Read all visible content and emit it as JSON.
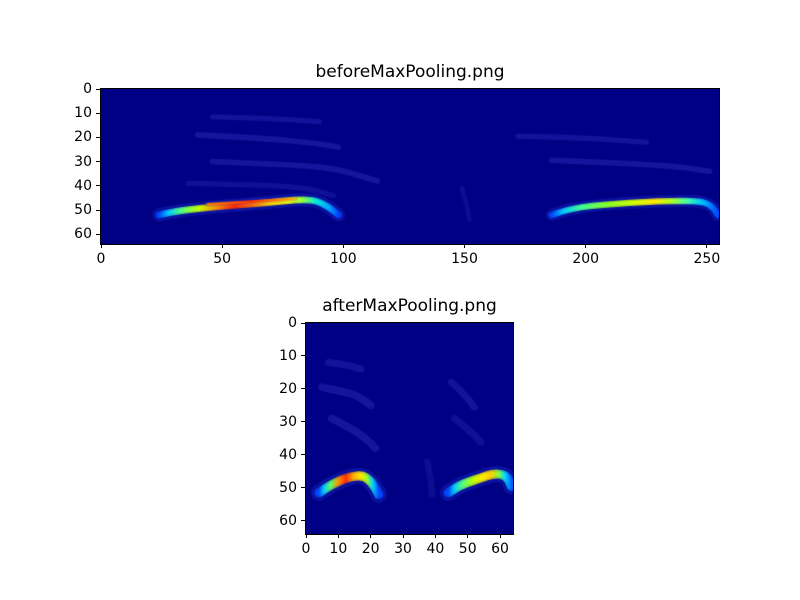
{
  "figure": {
    "background": "#ffffff"
  },
  "chart_data": [
    {
      "type": "heatmap",
      "title": "beforeMaxPooling.png",
      "colormap": "jet",
      "origin": "upper",
      "xlim": [
        0,
        255
      ],
      "ylim": [
        0,
        64
      ],
      "xticks": [
        0,
        50,
        100,
        150,
        200,
        250
      ],
      "yticks": [
        0,
        10,
        20,
        30,
        40,
        50,
        60
      ],
      "xlabel": "",
      "ylabel": "",
      "background_color": "#000084",
      "streaks": [
        {
          "name": "left-main-ridge",
          "points": [
            [
              24,
              52
            ],
            [
              29,
              50.8
            ],
            [
              36,
              49.8
            ],
            [
              46,
              48.8
            ],
            [
              58,
              47.8
            ],
            [
              70,
              46.8
            ],
            [
              80,
              45.8
            ],
            [
              87,
              45.8
            ],
            [
              91,
              47
            ],
            [
              95,
              49.5
            ],
            [
              98,
              52
            ]
          ],
          "stops": [
            [
              0,
              "#0048ff"
            ],
            [
              0.05,
              "#00c8ff"
            ],
            [
              0.12,
              "#50ff80"
            ],
            [
              0.22,
              "#c8ff00"
            ],
            [
              0.32,
              "#ff9000"
            ],
            [
              0.42,
              "#ff2800"
            ],
            [
              0.52,
              "#ff7000"
            ],
            [
              0.62,
              "#ffd800"
            ],
            [
              0.72,
              "#ffff00"
            ],
            [
              0.8,
              "#90ff40"
            ],
            [
              0.88,
              "#00e8e0"
            ],
            [
              0.95,
              "#00a0ff"
            ],
            [
              1,
              "#0040ff"
            ]
          ],
          "glow_width": 5.5,
          "mid_width": 2.8,
          "core_width": 1.5,
          "glow_alpha": 0.3
        },
        {
          "name": "left-upper-filament",
          "points": [
            [
              44,
              47.6
            ],
            [
              58,
              46.7
            ],
            [
              72,
              45.9
            ],
            [
              80,
              45.3
            ]
          ],
          "stops": [
            [
              0,
              "#ff8000"
            ],
            [
              0.5,
              "#ff3000"
            ],
            [
              1,
              "#ffb000"
            ]
          ],
          "glow_width": 2.2,
          "mid_width": 1.1,
          "core_width": 0.6,
          "glow_alpha": 0.2
        },
        {
          "name": "right-main-ridge",
          "points": [
            [
              186,
              52
            ],
            [
              191,
              50.3
            ],
            [
              198,
              48.8
            ],
            [
              207,
              47.8
            ],
            [
              218,
              47
            ],
            [
              230,
              46.4
            ],
            [
              240,
              46.2
            ],
            [
              247,
              46.4
            ],
            [
              251,
              47.6
            ],
            [
              253.5,
              50
            ],
            [
              254.5,
              52
            ]
          ],
          "stops": [
            [
              0,
              "#0048ff"
            ],
            [
              0.07,
              "#00c8ff"
            ],
            [
              0.18,
              "#40ff90"
            ],
            [
              0.35,
              "#90ff20"
            ],
            [
              0.5,
              "#d8ff00"
            ],
            [
              0.62,
              "#ffe800"
            ],
            [
              0.72,
              "#b0ff20"
            ],
            [
              0.82,
              "#40ffb0"
            ],
            [
              0.9,
              "#00c8ff"
            ],
            [
              1,
              "#0048ff"
            ]
          ],
          "glow_width": 5,
          "mid_width": 2.6,
          "core_width": 1.4,
          "glow_alpha": 0.3
        }
      ],
      "faint_streaks": [
        {
          "points": [
            [
              46,
              11.5
            ],
            [
              68,
              12
            ],
            [
              90,
              13.5
            ]
          ],
          "color": "#14149c",
          "width": 2.2,
          "alpha": 0.9
        },
        {
          "points": [
            [
              40,
              19
            ],
            [
              62,
              20
            ],
            [
              86,
              22
            ],
            [
              98,
              24
            ]
          ],
          "color": "#16169f",
          "width": 2.4,
          "alpha": 0.9
        },
        {
          "points": [
            [
              46,
              30
            ],
            [
              72,
              31
            ],
            [
              96,
              32.5
            ],
            [
              114,
              38
            ]
          ],
          "color": "#16169f",
          "width": 2.4,
          "alpha": 0.9
        },
        {
          "points": [
            [
              36,
              39
            ],
            [
              60,
              39.5
            ],
            [
              83,
              40.5
            ],
            [
              96,
              44
            ]
          ],
          "color": "#13139a",
          "width": 2.2,
          "alpha": 0.85
        },
        {
          "points": [
            [
              149,
              41
            ],
            [
              151,
              48
            ],
            [
              152,
              54
            ]
          ],
          "color": "#101096",
          "width": 2.0,
          "alpha": 0.8
        },
        {
          "points": [
            [
              172,
              19.5
            ],
            [
              198,
              20
            ],
            [
              225,
              22
            ]
          ],
          "color": "#14149c",
          "width": 2.2,
          "alpha": 0.9
        },
        {
          "points": [
            [
              186,
              29.5
            ],
            [
              212,
              30.5
            ],
            [
              238,
              32
            ],
            [
              251,
              34
            ]
          ],
          "color": "#16169f",
          "width": 2.4,
          "alpha": 0.9
        }
      ]
    },
    {
      "type": "heatmap",
      "title": "afterMaxPooling.png",
      "colormap": "jet",
      "origin": "upper",
      "xlim": [
        0,
        64
      ],
      "ylim": [
        0,
        64
      ],
      "xticks": [
        0,
        10,
        20,
        30,
        40,
        50,
        60
      ],
      "yticks": [
        0,
        10,
        20,
        30,
        40,
        50,
        60
      ],
      "xlabel": "",
      "ylabel": "",
      "background_color": "#000084",
      "streaks": [
        {
          "name": "left-main-ridge",
          "points": [
            [
              4,
              51.5
            ],
            [
              6.5,
              49.8
            ],
            [
              10,
              48
            ],
            [
              14,
              46.5
            ],
            [
              17.5,
              46.3
            ],
            [
              19.5,
              47.5
            ],
            [
              21.5,
              50
            ],
            [
              22.5,
              52
            ]
          ],
          "stops": [
            [
              0,
              "#0048ff"
            ],
            [
              0.08,
              "#00c8ff"
            ],
            [
              0.2,
              "#60ff60"
            ],
            [
              0.33,
              "#ff9000"
            ],
            [
              0.45,
              "#ff3000"
            ],
            [
              0.58,
              "#ffb000"
            ],
            [
              0.7,
              "#ffe800"
            ],
            [
              0.8,
              "#a0ff20"
            ],
            [
              0.9,
              "#00d8ff"
            ],
            [
              1,
              "#0048ff"
            ]
          ],
          "glow_width": 5,
          "mid_width": 2.8,
          "core_width": 1.6,
          "glow_alpha": 0.3
        },
        {
          "name": "right-main-ridge",
          "points": [
            [
              44,
              51.5
            ],
            [
              46.5,
              49.8
            ],
            [
              50,
              48.3
            ],
            [
              54,
              47
            ],
            [
              57.5,
              45.8
            ],
            [
              60.5,
              45.8
            ],
            [
              62.5,
              47
            ],
            [
              63.5,
              49.5
            ]
          ],
          "stops": [
            [
              0,
              "#0048ff"
            ],
            [
              0.09,
              "#00c8ff"
            ],
            [
              0.22,
              "#50ff80"
            ],
            [
              0.4,
              "#c0ff00"
            ],
            [
              0.55,
              "#ffe800"
            ],
            [
              0.68,
              "#ffd000"
            ],
            [
              0.8,
              "#80ff40"
            ],
            [
              0.9,
              "#00d8ff"
            ],
            [
              1,
              "#0060ff"
            ]
          ],
          "glow_width": 5,
          "mid_width": 2.8,
          "core_width": 1.6,
          "glow_alpha": 0.3
        }
      ],
      "faint_streaks": [
        {
          "points": [
            [
              7,
              12
            ],
            [
              12,
              12.5
            ],
            [
              17,
              14
            ]
          ],
          "color": "#14149c",
          "width": 2.2,
          "alpha": 0.9
        },
        {
          "points": [
            [
              5,
              19.5
            ],
            [
              10,
              20.5
            ],
            [
              16,
              22
            ],
            [
              20,
              25
            ]
          ],
          "color": "#16169f",
          "width": 2.4,
          "alpha": 0.9
        },
        {
          "points": [
            [
              8,
              29
            ],
            [
              13,
              31.5
            ],
            [
              18,
              34.5
            ],
            [
              21.5,
              38
            ]
          ],
          "color": "#16169f",
          "width": 2.4,
          "alpha": 0.9
        },
        {
          "points": [
            [
              45,
              18
            ],
            [
              48.5,
              21
            ],
            [
              52,
              25.5
            ]
          ],
          "color": "#14149c",
          "width": 2.2,
          "alpha": 0.9
        },
        {
          "points": [
            [
              46,
              29
            ],
            [
              50,
              32
            ],
            [
              54,
              36
            ]
          ],
          "color": "#13139a",
          "width": 2.2,
          "alpha": 0.85
        },
        {
          "points": [
            [
              37.5,
              42
            ],
            [
              38.5,
              47
            ],
            [
              39,
              52
            ]
          ],
          "color": "#101096",
          "width": 2.0,
          "alpha": 0.8
        }
      ]
    }
  ]
}
